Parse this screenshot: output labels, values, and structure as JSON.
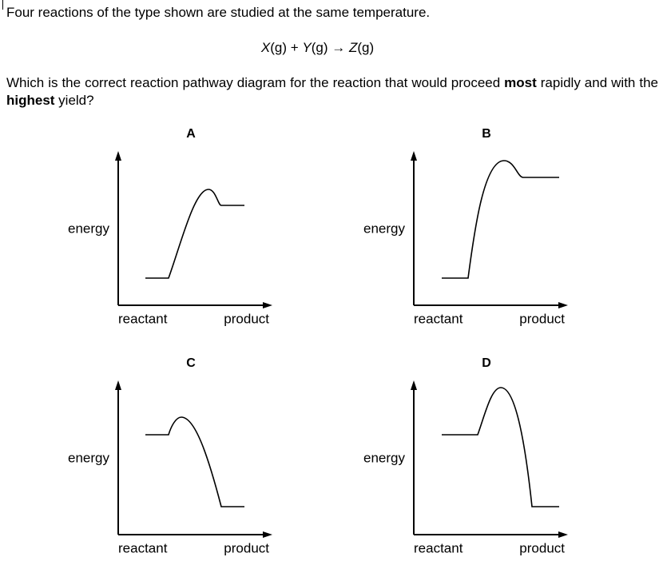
{
  "question": {
    "intro": "Four reactions of the type shown are studied at the same temperature.",
    "equation": [
      "X",
      "(g) + ",
      "Y",
      "(g) → ",
      "Z",
      "(g)"
    ],
    "prompt": [
      "Which is the correct reaction pathway diagram for the reaction that would proceed ",
      "most",
      " rapidly and with the ",
      "highest",
      " yield?"
    ]
  },
  "options": [
    {
      "label": "A",
      "y_axis": "energy",
      "x_start": "reactant",
      "x_end": "product"
    },
    {
      "label": "B",
      "y_axis": "energy",
      "x_start": "reactant",
      "x_end": "product"
    },
    {
      "label": "C",
      "y_axis": "energy",
      "x_start": "reactant",
      "x_end": "product"
    },
    {
      "label": "D",
      "y_axis": "energy",
      "x_start": "reactant",
      "x_end": "product"
    }
  ]
}
